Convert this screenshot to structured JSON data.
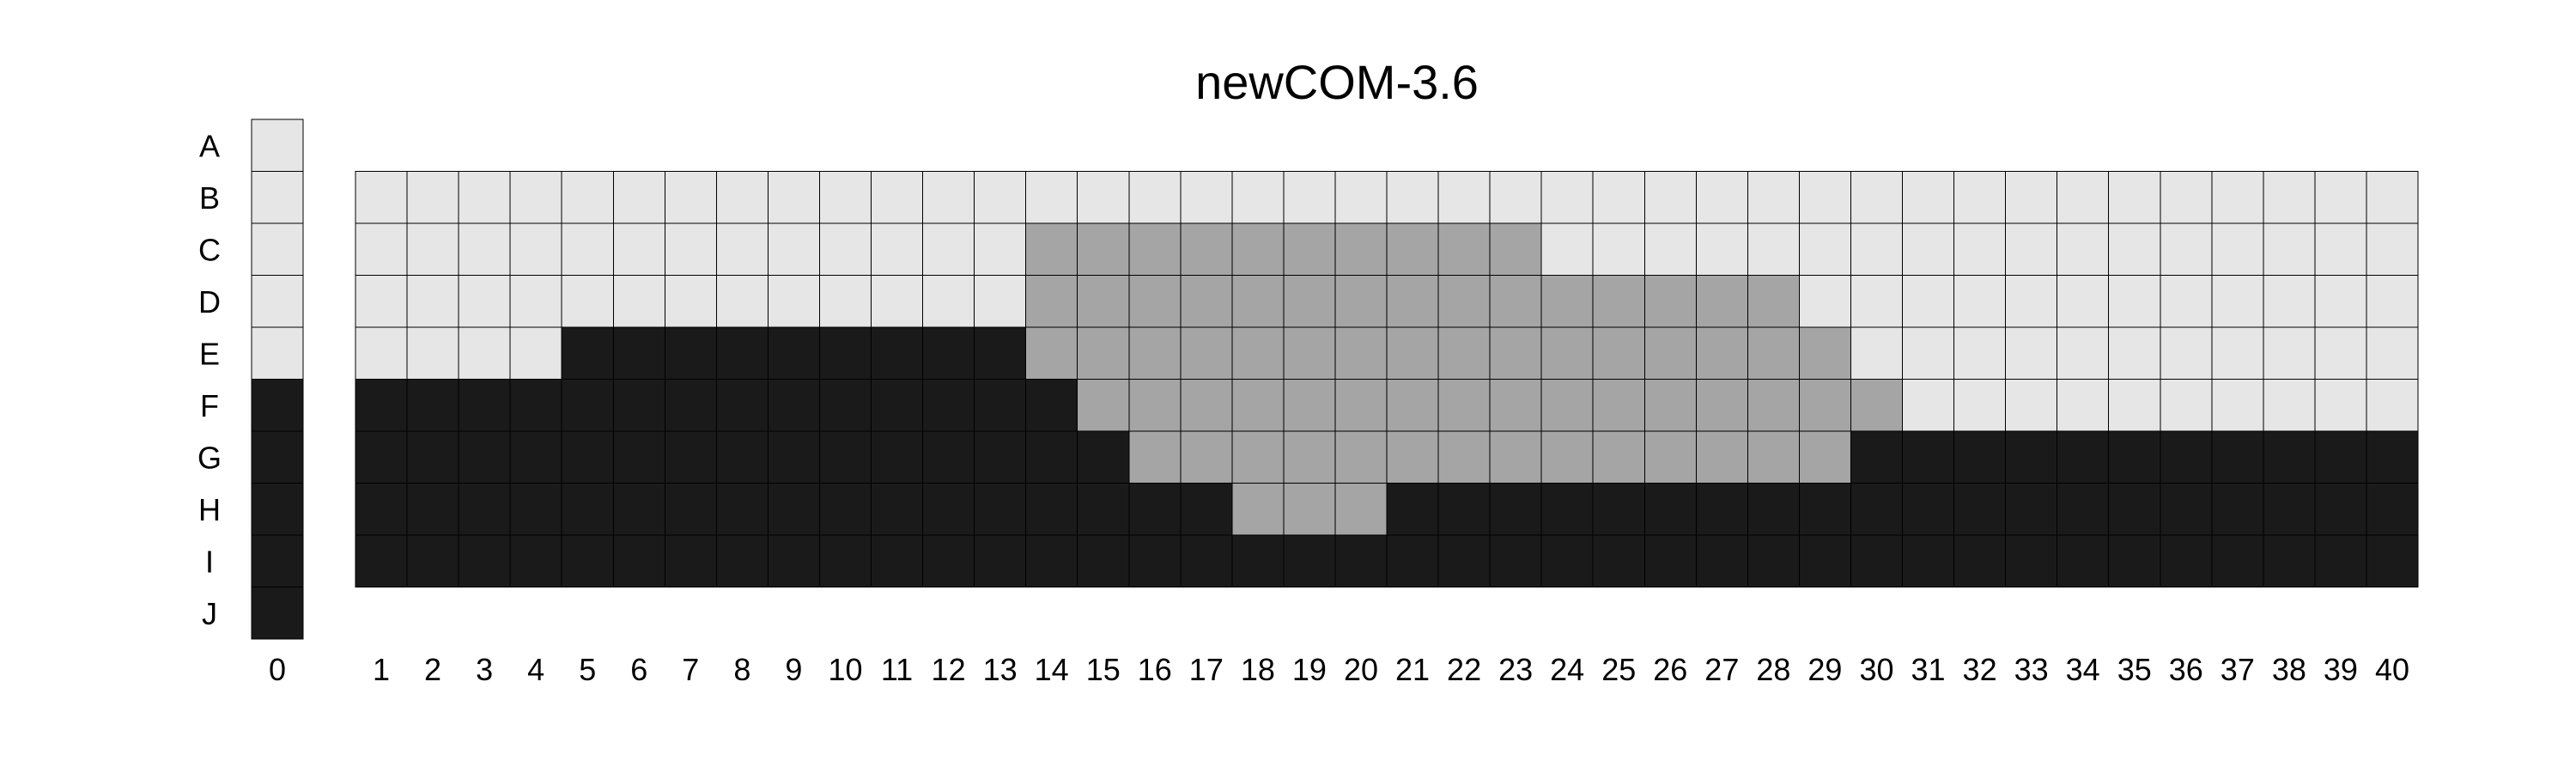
{
  "chart_data": {
    "type": "heatmap",
    "title": "newCOM-3.6",
    "row_labels": [
      "A",
      "B",
      "C",
      "D",
      "E",
      "F",
      "G",
      "H",
      "I",
      "J"
    ],
    "reference_column": {
      "label": "0",
      "values": [
        0,
        0,
        0,
        0,
        0,
        2,
        2,
        2,
        2,
        2
      ]
    },
    "column_labels": [
      "1",
      "2",
      "3",
      "4",
      "5",
      "6",
      "7",
      "8",
      "9",
      "10",
      "11",
      "12",
      "13",
      "14",
      "15",
      "16",
      "17",
      "18",
      "19",
      "20",
      "21",
      "22",
      "23",
      "24",
      "25",
      "26",
      "27",
      "28",
      "29",
      "30",
      "31",
      "32",
      "33",
      "34",
      "35",
      "36",
      "37",
      "38",
      "39",
      "40"
    ],
    "grid_first_row": "B",
    "grid_rows": [
      "B",
      "C",
      "D",
      "E",
      "F",
      "G",
      "H",
      "I"
    ],
    "grid": [
      [
        0,
        0,
        0,
        0,
        0,
        0,
        0,
        0,
        0,
        0,
        0,
        0,
        0,
        0,
        0,
        0,
        0,
        0,
        0,
        0,
        0,
        0,
        0,
        0,
        0,
        0,
        0,
        0,
        0,
        0,
        0,
        0,
        0,
        0,
        0,
        0,
        0,
        0,
        0,
        0
      ],
      [
        0,
        0,
        0,
        0,
        0,
        0,
        0,
        0,
        0,
        0,
        0,
        0,
        0,
        1,
        1,
        1,
        1,
        1,
        1,
        1,
        1,
        1,
        1,
        0,
        0,
        0,
        0,
        0,
        0,
        0,
        0,
        0,
        0,
        0,
        0,
        0,
        0,
        0,
        0,
        0
      ],
      [
        0,
        0,
        0,
        0,
        0,
        0,
        0,
        0,
        0,
        0,
        0,
        0,
        0,
        1,
        1,
        1,
        1,
        1,
        1,
        1,
        1,
        1,
        1,
        1,
        1,
        1,
        1,
        1,
        0,
        0,
        0,
        0,
        0,
        0,
        0,
        0,
        0,
        0,
        0,
        0
      ],
      [
        0,
        0,
        0,
        0,
        2,
        2,
        2,
        2,
        2,
        2,
        2,
        2,
        2,
        1,
        1,
        1,
        1,
        1,
        1,
        1,
        1,
        1,
        1,
        1,
        1,
        1,
        1,
        1,
        1,
        0,
        0,
        0,
        0,
        0,
        0,
        0,
        0,
        0,
        0,
        0
      ],
      [
        2,
        2,
        2,
        2,
        2,
        2,
        2,
        2,
        2,
        2,
        2,
        2,
        2,
        2,
        1,
        1,
        1,
        1,
        1,
        1,
        1,
        1,
        1,
        1,
        1,
        1,
        1,
        1,
        1,
        1,
        0,
        0,
        0,
        0,
        0,
        0,
        0,
        0,
        0,
        0
      ],
      [
        2,
        2,
        2,
        2,
        2,
        2,
        2,
        2,
        2,
        2,
        2,
        2,
        2,
        2,
        2,
        1,
        1,
        1,
        1,
        1,
        1,
        1,
        1,
        1,
        1,
        1,
        1,
        1,
        1,
        2,
        2,
        2,
        2,
        2,
        2,
        2,
        2,
        2,
        2,
        2
      ],
      [
        2,
        2,
        2,
        2,
        2,
        2,
        2,
        2,
        2,
        2,
        2,
        2,
        2,
        2,
        2,
        2,
        2,
        1,
        1,
        1,
        2,
        2,
        2,
        2,
        2,
        2,
        2,
        2,
        2,
        2,
        2,
        2,
        2,
        2,
        2,
        2,
        2,
        2,
        2,
        2
      ],
      [
        2,
        2,
        2,
        2,
        2,
        2,
        2,
        2,
        2,
        2,
        2,
        2,
        2,
        2,
        2,
        2,
        2,
        2,
        2,
        2,
        2,
        2,
        2,
        2,
        2,
        2,
        2,
        2,
        2,
        2,
        2,
        2,
        2,
        2,
        2,
        2,
        2,
        2,
        2,
        2
      ]
    ],
    "value_colors": [
      "#e6e6e6",
      "#a5a5a5",
      "#1a1a1a"
    ],
    "grid_lines": true,
    "legend": "none"
  }
}
